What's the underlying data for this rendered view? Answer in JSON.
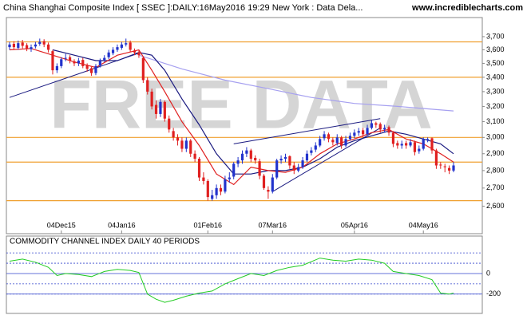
{
  "chart_data": [
    {
      "type": "candlestick",
      "title": "China Shanghai Composite Index [ SSEC ]:DAILY:16May2016 19:29 New York : Data Dela...",
      "source": "www.incrediblecharts.com",
      "watermark": "FREE DATA",
      "log_scale": true,
      "up_color": "#2233cc",
      "down_color": "#e02020",
      "categories": [
        null,
        null,
        null,
        null,
        null,
        null,
        null,
        null,
        null,
        null,
        null,
        null,
        "04Dec15",
        null,
        null,
        null,
        null,
        null,
        null,
        null,
        null,
        null,
        null,
        null,
        null,
        null,
        "04Jan16",
        null,
        null,
        null,
        null,
        null,
        null,
        null,
        null,
        null,
        null,
        null,
        null,
        null,
        null,
        null,
        null,
        null,
        null,
        null,
        "01Feb16",
        null,
        null,
        null,
        null,
        null,
        null,
        null,
        null,
        null,
        null,
        null,
        null,
        null,
        null,
        "07Mar16",
        null,
        null,
        null,
        null,
        null,
        null,
        null,
        null,
        null,
        null,
        null,
        null,
        null,
        null,
        null,
        null,
        null,
        null,
        "05Apr16",
        null,
        null,
        null,
        null,
        null,
        null,
        null,
        null,
        null,
        null,
        null,
        null,
        null,
        null,
        null,
        "04May16",
        null,
        null,
        null,
        null,
        null,
        null,
        null
      ],
      "open": [
        3620,
        3645,
        3615,
        3655,
        3635,
        3605,
        3625,
        3645,
        3665,
        3640,
        3590,
        3450,
        3480,
        3535,
        3545,
        3515,
        3500,
        3525,
        3485,
        3465,
        3430,
        3485,
        3525,
        3545,
        3575,
        3600,
        3615,
        3640,
        3655,
        3595,
        3580,
        3540,
        3380,
        3300,
        3210,
        3150,
        3230,
        3120,
        3040,
        3000,
        2980,
        2930,
        2980,
        2900,
        2870,
        2760,
        2740,
        2640,
        2660,
        2700,
        2680,
        2750,
        2765,
        2840,
        2860,
        2900,
        2920,
        2875,
        2855,
        2770,
        2690,
        2680,
        2760,
        2860,
        2870,
        2885,
        2830,
        2800,
        2820,
        2860,
        2905,
        2925,
        2950,
        2995,
        3020,
        2985,
        2965,
        3000,
        2950,
        2990,
        3010,
        3030,
        3045,
        3020,
        3060,
        3090,
        3085,
        3050,
        3065,
        3030,
        2965,
        2950,
        2965,
        2950,
        2970,
        2915,
        2930,
        2990,
        2995,
        2920,
        2835,
        2825,
        2815,
        2800
      ],
      "high": [
        3660,
        3665,
        3670,
        3675,
        3650,
        3640,
        3660,
        3685,
        3680,
        3655,
        3600,
        3500,
        3545,
        3570,
        3560,
        3530,
        3540,
        3540,
        3500,
        3475,
        3495,
        3535,
        3560,
        3600,
        3620,
        3640,
        3660,
        3685,
        3670,
        3610,
        3595,
        3550,
        3400,
        3320,
        3240,
        3250,
        3240,
        3140,
        3060,
        3020,
        3000,
        3000,
        2990,
        2920,
        2880,
        2790,
        2750,
        2690,
        2720,
        2720,
        2770,
        2790,
        2850,
        2880,
        2920,
        2940,
        2930,
        2890,
        2870,
        2780,
        2710,
        2780,
        2870,
        2890,
        2900,
        2890,
        2850,
        2840,
        2880,
        2920,
        2940,
        2970,
        3010,
        3040,
        3030,
        3000,
        3020,
        3010,
        3010,
        3030,
        3050,
        3060,
        3060,
        3080,
        3110,
        3100,
        3095,
        3080,
        3075,
        3040,
        2980,
        2980,
        2980,
        2990,
        2980,
        2950,
        3000,
        3000,
        3000,
        2930,
        2850,
        2840,
        2830,
        2850
      ],
      "low": [
        3600,
        3600,
        3600,
        3610,
        3590,
        3585,
        3610,
        3630,
        3620,
        3580,
        3420,
        3430,
        3465,
        3515,
        3500,
        3480,
        3480,
        3465,
        3440,
        3410,
        3415,
        3470,
        3510,
        3530,
        3560,
        3585,
        3600,
        3625,
        3585,
        3560,
        3540,
        3360,
        3280,
        3180,
        3120,
        3130,
        3100,
        3030,
        2980,
        2950,
        2910,
        2910,
        2880,
        2850,
        2740,
        2720,
        2630,
        2630,
        2640,
        2660,
        2670,
        2730,
        2750,
        2820,
        2840,
        2880,
        2850,
        2840,
        2750,
        2690,
        2640,
        2670,
        2750,
        2840,
        2850,
        2810,
        2780,
        2790,
        2810,
        2850,
        2890,
        2910,
        2940,
        2980,
        2970,
        2950,
        2950,
        2930,
        2940,
        2980,
        2995,
        3010,
        3000,
        3010,
        3050,
        3060,
        3030,
        3030,
        3010,
        2940,
        2930,
        2930,
        2930,
        2940,
        2890,
        2900,
        2920,
        2970,
        2900,
        2810,
        2810,
        2790,
        2780,
        2790
      ],
      "close": [
        3640,
        3620,
        3650,
        3630,
        3610,
        3620,
        3640,
        3660,
        3640,
        3600,
        3450,
        3480,
        3530,
        3540,
        3520,
        3500,
        3520,
        3480,
        3460,
        3430,
        3480,
        3520,
        3540,
        3580,
        3600,
        3620,
        3640,
        3650,
        3600,
        3580,
        3560,
        3380,
        3300,
        3200,
        3150,
        3230,
        3120,
        3050,
        3000,
        2980,
        2930,
        2980,
        2900,
        2870,
        2760,
        2740,
        2650,
        2660,
        2700,
        2680,
        2750,
        2760,
        2840,
        2860,
        2900,
        2920,
        2870,
        2860,
        2770,
        2700,
        2680,
        2760,
        2860,
        2870,
        2880,
        2830,
        2800,
        2820,
        2860,
        2900,
        2920,
        2950,
        2990,
        3020,
        2990,
        2970,
        3000,
        2950,
        2990,
        3010,
        3030,
        3040,
        3020,
        3060,
        3090,
        3080,
        3050,
        3060,
        3030,
        2960,
        2950,
        2960,
        2950,
        2970,
        2910,
        2930,
        2990,
        2990,
        2920,
        2830,
        2830,
        2820,
        2800,
        2830
      ],
      "levels": {
        "color": "#f0a030",
        "values": [
          3660,
          3400,
          3000,
          2850,
          2630
        ]
      },
      "overlays": [
        {
          "color": "#a6a0f0",
          "x": [
            30,
            40,
            50,
            60,
            70,
            80,
            90,
            103
          ],
          "values": [
            3560,
            3460,
            3380,
            3320,
            3260,
            3220,
            3200,
            3170
          ]
        },
        {
          "color": "#1a1a80",
          "x": [
            10,
            15,
            20,
            25,
            30,
            33,
            36,
            40,
            44,
            48,
            52,
            56,
            60,
            64,
            68,
            72,
            76,
            80,
            84,
            88,
            92,
            96,
            100,
            103
          ],
          "values": [
            3600,
            3560,
            3520,
            3520,
            3580,
            3560,
            3450,
            3250,
            3080,
            2900,
            2780,
            2780,
            2800,
            2800,
            2820,
            2870,
            2940,
            2980,
            3010,
            3040,
            3020,
            2990,
            2960,
            2900
          ]
        },
        {
          "color": "#e02020",
          "x": [
            0,
            5,
            10,
            15,
            20,
            25,
            30,
            33,
            36,
            40,
            44,
            48,
            52,
            56,
            60,
            64,
            68,
            72,
            76,
            80,
            84,
            88,
            92,
            96,
            100,
            103
          ],
          "values": [
            3600,
            3610,
            3560,
            3510,
            3470,
            3560,
            3600,
            3450,
            3300,
            3100,
            2950,
            2780,
            2720,
            2820,
            2800,
            2790,
            2820,
            2900,
            2960,
            2990,
            3030,
            3050,
            2990,
            2960,
            2900,
            2850
          ]
        }
      ],
      "trendlines": [
        {
          "color": "#1a1a80",
          "x": [
            0,
            30
          ],
          "values": [
            3260,
            3575
          ]
        },
        {
          "color": "#1a1a80",
          "x": [
            52,
            86
          ],
          "values": [
            2960,
            3120
          ]
        },
        {
          "color": "#1a1a80",
          "x": [
            61,
            86
          ],
          "values": [
            2680,
            3060
          ]
        }
      ],
      "ylim": [
        2530,
        3850
      ],
      "yticks": [
        {
          "value": 2600,
          "label": "2,600"
        },
        {
          "value": 2700,
          "label": "2,700"
        },
        {
          "value": 2800,
          "label": "2,800"
        },
        {
          "value": 2900,
          "label": "2,900"
        },
        {
          "value": 3000,
          "label": "3,000"
        },
        {
          "value": 3100,
          "label": "3,100"
        },
        {
          "value": 3200,
          "label": "3,200"
        },
        {
          "value": 3300,
          "label": "3,300"
        },
        {
          "value": 3400,
          "label": "3,400"
        },
        {
          "value": 3500,
          "label": "3,500"
        },
        {
          "value": 3600,
          "label": "3,600"
        },
        {
          "value": 3700,
          "label": "3,700"
        }
      ]
    },
    {
      "type": "line",
      "title": "COMMODITY CHANNEL INDEX DAILY 40 PERIODS",
      "color": "#22cc22",
      "x": [
        0,
        3,
        6,
        9,
        11,
        13,
        16,
        19,
        22,
        25,
        28,
        30,
        32,
        34,
        36,
        38,
        41,
        44,
        47,
        50,
        53,
        56,
        59,
        62,
        65,
        68,
        72,
        75,
        78,
        81,
        84,
        87,
        89,
        92,
        95,
        98,
        100,
        102,
        103
      ],
      "values": [
        120,
        140,
        110,
        60,
        -20,
        0,
        -10,
        -30,
        20,
        40,
        30,
        10,
        -200,
        -250,
        -280,
        -260,
        -220,
        -190,
        -170,
        -100,
        -50,
        0,
        -20,
        30,
        60,
        80,
        150,
        130,
        120,
        140,
        130,
        100,
        20,
        0,
        -20,
        -60,
        -190,
        -200,
        -190
      ],
      "xlim": [
        0,
        103
      ],
      "ylim": [
        -380,
        240
      ],
      "yticks": [
        -200,
        0
      ],
      "ref_lines": {
        "color": "#3344cc",
        "values": [
          -200,
          -100,
          100,
          200
        ]
      }
    }
  ]
}
